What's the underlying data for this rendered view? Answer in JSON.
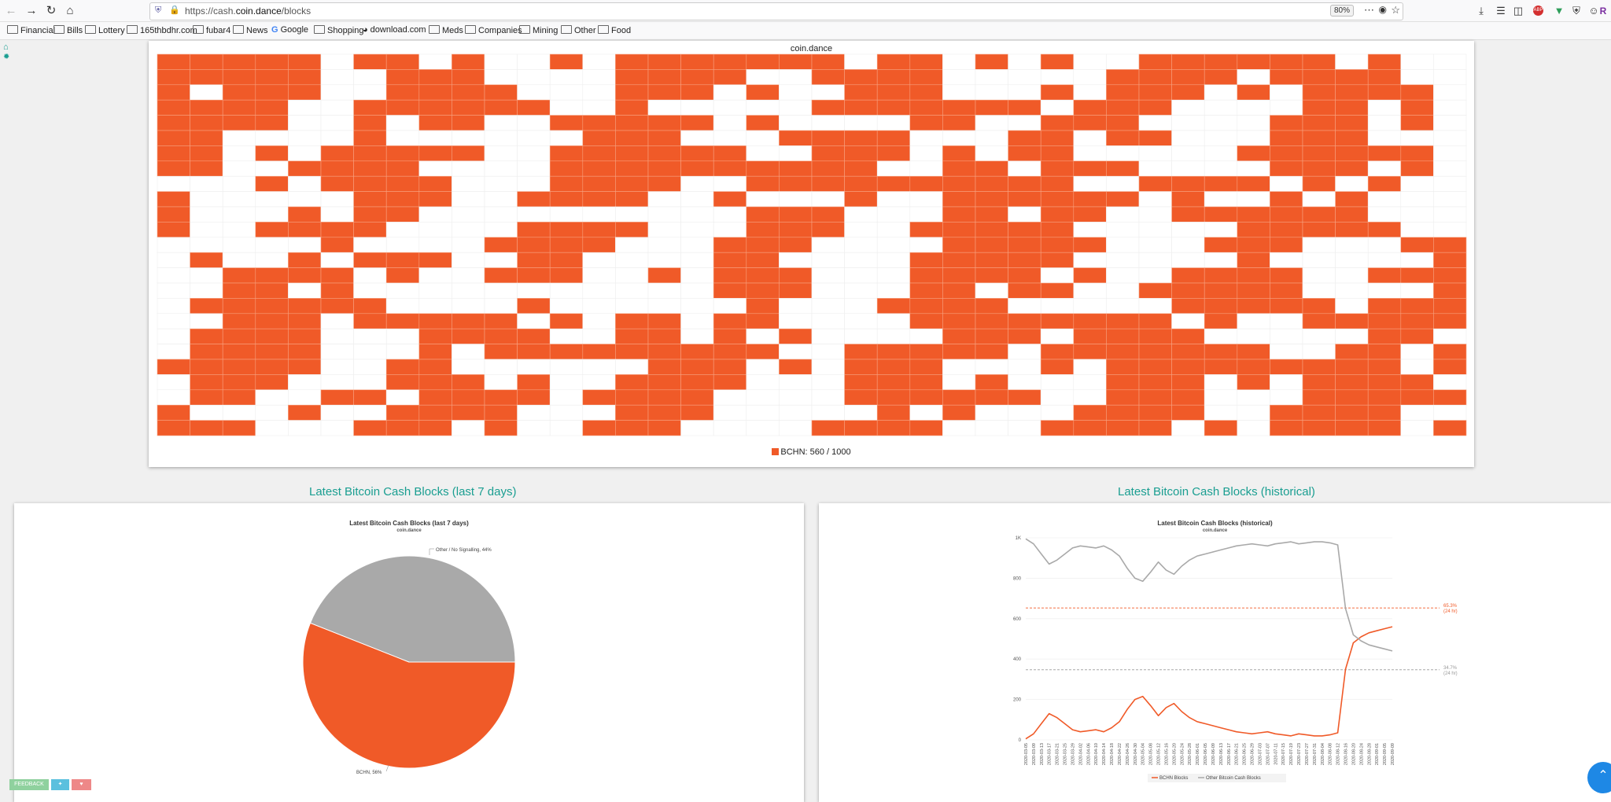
{
  "browser": {
    "url_prefix": "https://cash.",
    "url_domain": "coin.dance",
    "url_suffix": "/blocks",
    "zoom": "80%",
    "bookmarks": [
      "Financial",
      "Bills",
      "Lottery",
      "165thbdhr.com",
      "fubar4",
      "News",
      "Google",
      "Shopping",
      "download.com",
      "Meds",
      "Companies",
      "Mining",
      "Other",
      "Food"
    ]
  },
  "block_grid": {
    "title": "coin.dance",
    "legend": "BCHN: 560 / 1000",
    "color": "#f05a28",
    "columns": 40,
    "rows": 25,
    "signaling_blocks": 560,
    "total_blocks": 1000
  },
  "left_chart": {
    "section_title": "Latest Bitcoin Cash Blocks (last 7 days)",
    "title": "Latest Bitcoin Cash Blocks (last 7 days)",
    "subtitle": "coin.dance",
    "label_other": "Other / No Signalling, 44%",
    "label_bchn": "BCHN, 56%"
  },
  "right_chart": {
    "section_title": "Latest Bitcoin Cash Blocks (historical)",
    "title": "Latest Bitcoin Cash Blocks (historical)",
    "subtitle": "coin.dance",
    "bchn_pct": "65.3%",
    "bchn_window": "(24 hr)",
    "other_pct": "34.7%",
    "other_window": "(24 hr)",
    "legend_bchn": "BCHN Blocks",
    "legend_other": "Other Bitcoin Cash Blocks"
  },
  "chart_data": [
    {
      "type": "pie",
      "title": "Latest Bitcoin Cash Blocks (last 7 days)",
      "categories": [
        "BCHN",
        "Other / No Signalling"
      ],
      "values": [
        56,
        44
      ],
      "colors": [
        "#f05a28",
        "#a9a9a9"
      ]
    },
    {
      "type": "line",
      "title": "Latest Bitcoin Cash Blocks (historical)",
      "ylim": [
        0,
        1000
      ],
      "yticks": [
        "0",
        "200",
        "400",
        "600",
        "800",
        "1K"
      ],
      "x": [
        "2020-03-05",
        "2020-03-09",
        "2020-03-13",
        "2020-03-17",
        "2020-03-21",
        "2020-03-25",
        "2020-03-29",
        "2020-04-02",
        "2020-04-06",
        "2020-04-10",
        "2020-04-14",
        "2020-04-18",
        "2020-04-22",
        "2020-04-26",
        "2020-04-30",
        "2020-05-04",
        "2020-05-08",
        "2020-05-12",
        "2020-05-16",
        "2020-05-20",
        "2020-05-24",
        "2020-05-28",
        "2020-06-01",
        "2020-06-05",
        "2020-06-09",
        "2020-06-13",
        "2020-06-17",
        "2020-06-21",
        "2020-06-25",
        "2020-06-29",
        "2020-07-03",
        "2020-07-07",
        "2020-07-11",
        "2020-07-15",
        "2020-07-19",
        "2020-07-23",
        "2020-07-27",
        "2020-07-31",
        "2020-08-04",
        "2020-08-08",
        "2020-08-12",
        "2020-08-16",
        "2020-08-20",
        "2020-08-24",
        "2020-08-28",
        "2020-09-01",
        "2020-09-05",
        "2020-09-09"
      ],
      "series": [
        {
          "name": "BCHN Blocks",
          "color": "#f05a28",
          "values": [
            5,
            30,
            80,
            130,
            110,
            80,
            50,
            40,
            45,
            50,
            40,
            60,
            90,
            150,
            200,
            215,
            170,
            120,
            160,
            180,
            140,
            110,
            90,
            80,
            70,
            60,
            50,
            40,
            35,
            30,
            35,
            40,
            30,
            25,
            20,
            30,
            25,
            20,
            20,
            25,
            35,
            350,
            480,
            510,
            530,
            540,
            550,
            560
          ]
        },
        {
          "name": "Other Bitcoin Cash Blocks",
          "color": "#a9a9a9",
          "values": [
            995,
            970,
            920,
            870,
            890,
            920,
            950,
            960,
            955,
            950,
            960,
            940,
            910,
            850,
            800,
            785,
            830,
            880,
            840,
            820,
            860,
            890,
            910,
            920,
            930,
            940,
            950,
            960,
            965,
            970,
            965,
            960,
            970,
            975,
            980,
            970,
            975,
            980,
            980,
            975,
            965,
            650,
            520,
            490,
            470,
            460,
            450,
            440
          ]
        }
      ],
      "reference_lines": [
        {
          "label": "65.3%",
          "value": 653
        },
        {
          "label": "34.7%",
          "value": 347
        }
      ]
    }
  ],
  "misc": {
    "feedback": "FEEDBACK"
  }
}
